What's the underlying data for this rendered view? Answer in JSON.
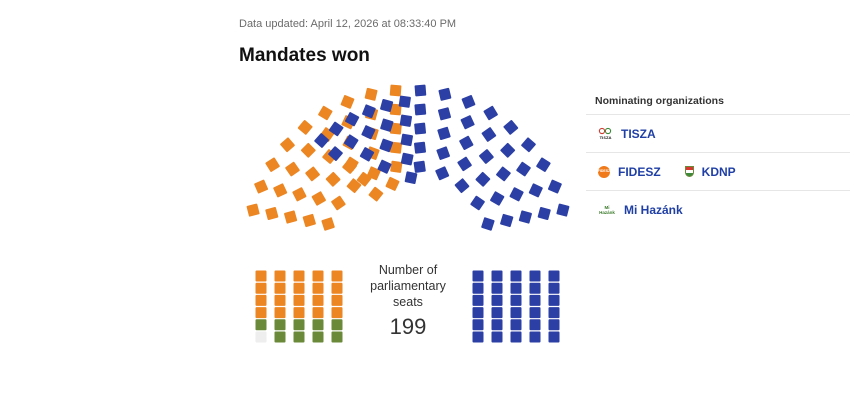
{
  "header": {
    "updated": "Data updated: April 12, 2026 at 08:33:40 PM",
    "title": "Mandates won"
  },
  "seats_center": {
    "label_lines": [
      "Number of",
      "parliamentary",
      "seats"
    ],
    "total": "199"
  },
  "legend": {
    "title": "Nominating organizations",
    "rows": [
      [
        {
          "name": "TISZA",
          "color": "#2b3fa5",
          "icon": "tisza-logo-icon",
          "logo_text": "TISZA"
        }
      ],
      [
        {
          "name": "FIDESZ",
          "color": "#ec8622",
          "icon": "fidesz-logo-icon",
          "logo_text": "FIDESZ"
        },
        {
          "name": "KDNP",
          "color": "#ec8622",
          "icon": "kdnp-logo-icon"
        }
      ],
      [
        {
          "name": "Mi Hazánk",
          "color": "#6a8a3a",
          "icon": "mi-hazank-logo-icon",
          "logo_text": "Mi Hazánk"
        }
      ]
    ]
  },
  "colors": {
    "tisza": "#2b3fa5",
    "fidesz_kdnp": "#ec8622",
    "mi_hazank": "#6a8a3a",
    "empty": "#eeeeee",
    "accent_link": "#1f3fa6"
  }
}
